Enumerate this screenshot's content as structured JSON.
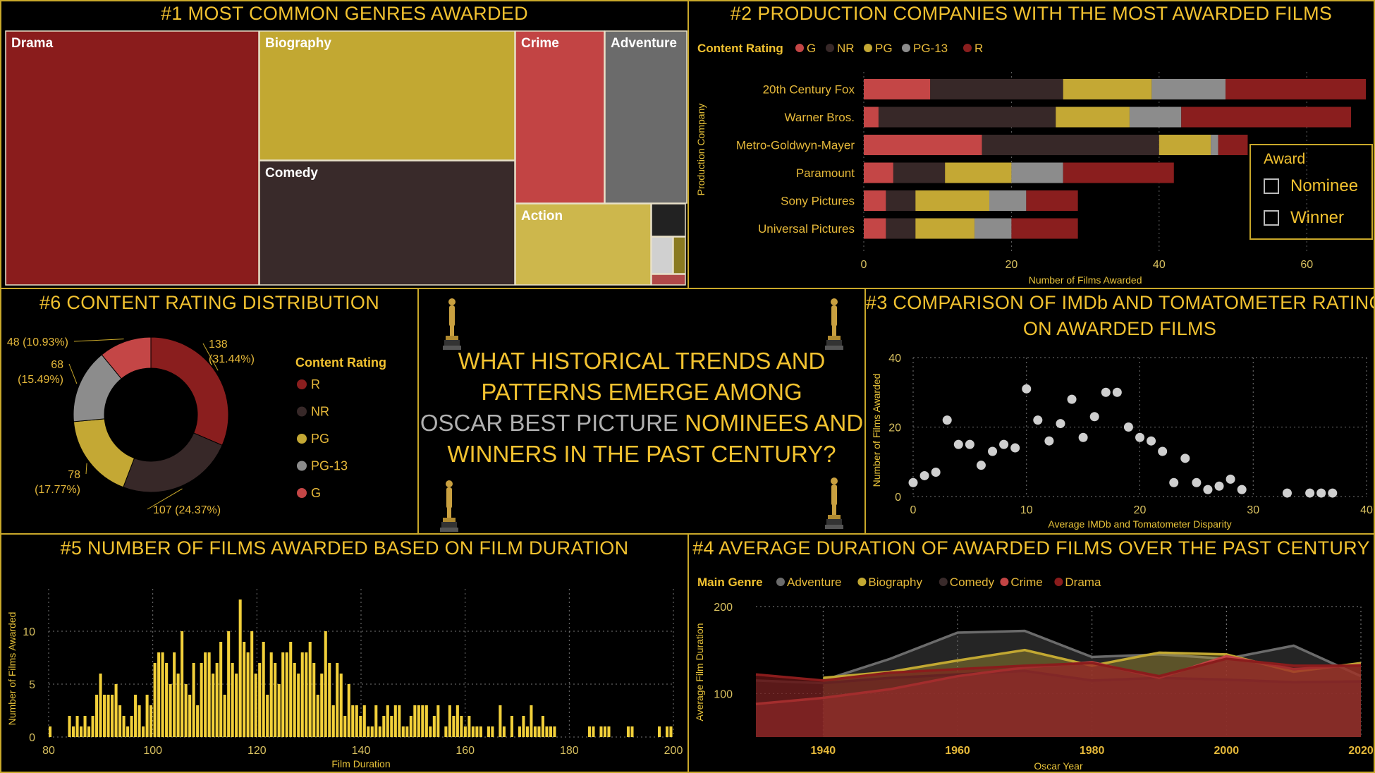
{
  "panels": {
    "p1_title": "#1 MOST COMMON GENRES AWARDED",
    "p2_title": "#2 PRODUCTION COMPANIES WITH THE MOST AWARDED FILMS",
    "p6_title": "#6 CONTENT RATING DISTRIBUTION",
    "p3_title_line1": "#3 COMPARISON OF IMDb AND TOMATOMETER RATINGS",
    "p3_title_line2": "ON AWARDED FILMS",
    "p5_title": "#5 NUMBER OF FILMS AWARDED BASED ON FILM DURATION",
    "p4_title": "#4 AVERAGE DURATION OF AWARDED FILMS OVER THE PAST CENTURY"
  },
  "center": {
    "line1": "WHAT HISTORICAL TRENDS AND",
    "line2": "PATTERNS EMERGE AMONG",
    "line3_grey": "OSCAR BEST PICTURE",
    "line3_rest": " NOMINEES AND",
    "line4": "WINNERS IN THE PAST CENTURY?"
  },
  "award_filter": {
    "title": "Award",
    "options": [
      "Nominee",
      "Winner"
    ]
  },
  "colors": {
    "G": "#c44646",
    "NR": "#372828",
    "PG": "#c4a834",
    "PG-13": "#8c8c8c",
    "R": "#8a1e1e",
    "Adventure": "#6b6b6b",
    "Biography": "#c2a832",
    "Comedy": "#392a2a",
    "Crime": "#c24444",
    "Drama": "#8a1c1c",
    "bar_yellow": "#f2d03a",
    "scatter": "#cfcfcf"
  },
  "chart_data": [
    {
      "id": "treemap",
      "type": "treemap",
      "title": "#1 MOST COMMON GENRES AWARDED",
      "tiles": [
        {
          "label": "Drama",
          "color": "#8a1c1c",
          "relative_size": 0.341
        },
        {
          "label": "Biography",
          "color": "#c2a832",
          "relative_size": 0.167
        },
        {
          "label": "Comedy",
          "color": "#392a2a",
          "relative_size": 0.167
        },
        {
          "label": "Crime",
          "color": "#c24444",
          "relative_size": 0.072
        },
        {
          "label": "Adventure",
          "color": "#6b6b6b",
          "relative_size": 0.072
        },
        {
          "label": "Action",
          "color": "#cdb74c",
          "relative_size": 0.051
        },
        {
          "label": "",
          "color": "#222222",
          "relative_size": 0.014
        },
        {
          "label": "",
          "color": "#d0d0d0",
          "relative_size": 0.008
        },
        {
          "label": "",
          "color": "#8a7a20",
          "relative_size": 0.004
        },
        {
          "label": "",
          "color": "#b04848",
          "relative_size": 0.004
        }
      ]
    },
    {
      "id": "stacked_bar",
      "type": "bar",
      "orientation": "horizontal",
      "stacked": true,
      "title": "#2 PRODUCTION COMPANIES WITH THE MOST AWARDED FILMS",
      "legend_title": "Content Rating",
      "ylabel": "Production Company",
      "xlabel": "Number of Films Awarded",
      "xlim": [
        0,
        68
      ],
      "xticks": [
        0,
        20,
        40,
        60
      ],
      "categories": [
        "20th Century Fox",
        "Warner Bros.",
        "Metro-Goldwyn-Mayer",
        "Paramount",
        "Sony Pictures",
        "Universal Pictures"
      ],
      "series": [
        {
          "name": "G",
          "values": [
            9,
            2,
            16,
            4,
            3,
            3
          ]
        },
        {
          "name": "NR",
          "values": [
            18,
            24,
            24,
            7,
            4,
            4
          ]
        },
        {
          "name": "PG",
          "values": [
            12,
            10,
            7,
            9,
            10,
            8
          ]
        },
        {
          "name": "PG-13",
          "values": [
            10,
            7,
            1,
            7,
            5,
            5
          ]
        },
        {
          "name": "R",
          "values": [
            19,
            23,
            4,
            15,
            7,
            9
          ]
        }
      ]
    },
    {
      "id": "donut",
      "type": "pie",
      "donut": true,
      "title": "#6 CONTENT RATING DISTRIBUTION",
      "legend_title": "Content Rating",
      "legend": [
        "R",
        "NR",
        "PG",
        "PG-13",
        "G"
      ],
      "slices": [
        {
          "name": "R",
          "value": 138,
          "label_line1": "138",
          "label_line2": "(31.44%)"
        },
        {
          "name": "NR",
          "value": 107,
          "label_line1": "107 (24.37%)",
          "label_line2": ""
        },
        {
          "name": "PG",
          "value": 78,
          "label_line1": "78",
          "label_line2": "(17.77%)"
        },
        {
          "name": "PG-13",
          "value": 68,
          "label_line1": "68",
          "label_line2": "(15.49%)"
        },
        {
          "name": "G",
          "value": 48,
          "label_line1": "48 (10.93%)",
          "label_line2": ""
        }
      ]
    },
    {
      "id": "scatter",
      "type": "scatter",
      "title": "#3 COMPARISON OF IMDb AND TOMATOMETER RATINGS ON AWARDED FILMS",
      "xlabel": "Average IMDb and Tomatometer Disparity",
      "ylabel": "Number of Films Awarded",
      "xlim": [
        0,
        40
      ],
      "ylim": [
        0,
        40
      ],
      "xticks": [
        0,
        10,
        20,
        30,
        40
      ],
      "yticks": [
        0,
        20,
        40
      ],
      "points": [
        [
          0,
          4
        ],
        [
          1,
          6
        ],
        [
          2,
          7
        ],
        [
          3,
          22
        ],
        [
          4,
          15
        ],
        [
          5,
          15
        ],
        [
          6,
          9
        ],
        [
          7,
          13
        ],
        [
          8,
          15
        ],
        [
          9,
          14
        ],
        [
          10,
          31
        ],
        [
          11,
          22
        ],
        [
          12,
          16
        ],
        [
          13,
          21
        ],
        [
          14,
          28
        ],
        [
          15,
          17
        ],
        [
          16,
          23
        ],
        [
          17,
          30
        ],
        [
          18,
          30
        ],
        [
          19,
          20
        ],
        [
          20,
          17
        ],
        [
          21,
          16
        ],
        [
          22,
          13
        ],
        [
          23,
          4
        ],
        [
          24,
          11
        ],
        [
          25,
          4
        ],
        [
          26,
          2
        ],
        [
          27,
          3
        ],
        [
          28,
          5
        ],
        [
          29,
          2
        ],
        [
          33,
          1
        ],
        [
          35,
          1
        ],
        [
          36,
          1
        ],
        [
          37,
          1
        ]
      ]
    },
    {
      "id": "histogram",
      "type": "bar",
      "title": "#5 NUMBER OF FILMS AWARDED BASED ON FILM DURATION",
      "xlabel": "Film Duration",
      "ylabel": "Number of Films Awarded",
      "xlim": [
        80,
        200
      ],
      "ylim": [
        0,
        14
      ],
      "xticks": [
        80,
        100,
        120,
        140,
        160,
        180,
        200
      ],
      "yticks": [
        0,
        5,
        10
      ],
      "x_start": 80,
      "values": [
        1,
        0,
        0,
        0,
        0,
        2,
        1,
        2,
        1,
        2,
        1,
        2,
        4,
        6,
        4,
        4,
        4,
        5,
        3,
        2,
        1,
        2,
        4,
        3,
        1,
        4,
        3,
        7,
        8,
        8,
        7,
        5,
        8,
        6,
        10,
        5,
        4,
        7,
        3,
        7,
        8,
        8,
        6,
        7,
        9,
        4,
        10,
        7,
        6,
        13,
        9,
        8,
        10,
        6,
        7,
        9,
        4,
        8,
        7,
        5,
        8,
        8,
        9,
        7,
        6,
        8,
        8,
        9,
        7,
        4,
        6,
        10,
        7,
        3,
        7,
        6,
        2,
        5,
        3,
        3,
        2,
        3,
        1,
        1,
        3,
        1,
        2,
        3,
        2,
        3,
        3,
        1,
        1,
        2,
        3,
        3,
        3,
        3,
        1,
        2,
        3,
        0,
        1,
        3,
        2,
        3,
        2,
        1,
        2,
        1,
        1,
        1,
        0,
        1,
        1,
        0,
        3,
        1,
        0,
        2,
        0,
        1,
        2,
        1,
        3,
        1,
        1,
        2,
        1,
        1,
        1,
        0,
        0,
        0,
        0,
        0,
        0,
        0,
        0,
        1,
        1,
        0,
        1,
        1,
        1,
        0,
        0,
        0,
        0,
        1,
        1,
        0,
        0,
        0,
        0,
        0,
        0,
        1,
        0,
        1,
        1
      ],
      "values_note_end": ""
    },
    {
      "id": "area",
      "type": "area",
      "title": "#4 AVERAGE DURATION OF AWARDED FILMS OVER THE PAST CENTURY",
      "legend_title": "Main Genre",
      "xlabel": "Oscar Year",
      "ylabel": "Average Film Duration",
      "xlim": [
        1930,
        2020
      ],
      "ylim": [
        50,
        200
      ],
      "xticks": [
        1940,
        1960,
        1980,
        2000,
        2020
      ],
      "yticks": [
        100,
        200
      ],
      "series": [
        {
          "name": "Adventure",
          "x": [
            1940,
            1950,
            1960,
            1970,
            1980,
            1990,
            2000,
            2010,
            2020
          ],
          "values": [
            115,
            140,
            170,
            172,
            142,
            145,
            140,
            155,
            120
          ]
        },
        {
          "name": "Biography",
          "x": [
            1940,
            1950,
            1960,
            1970,
            1980,
            1990,
            2000,
            2010,
            2020
          ],
          "values": [
            118,
            125,
            138,
            150,
            132,
            147,
            145,
            125,
            135
          ]
        },
        {
          "name": "Comedy",
          "x": [
            1930,
            1940,
            1950,
            1960,
            1970,
            1980,
            1990,
            2000,
            2010,
            2020
          ],
          "values": [
            115,
            112,
            118,
            122,
            126,
            115,
            118,
            116,
            113,
            114
          ]
        },
        {
          "name": "Crime",
          "x": [
            1930,
            1940,
            1950,
            1960,
            1970,
            1980,
            1990,
            2000,
            2010,
            2020
          ],
          "values": [
            88,
            95,
            105,
            120,
            130,
            136,
            118,
            143,
            128,
            133
          ]
        },
        {
          "name": "Drama",
          "x": [
            1930,
            1940,
            1950,
            1960,
            1970,
            1980,
            1990,
            2000,
            2010,
            2020
          ],
          "values": [
            122,
            115,
            124,
            128,
            132,
            135,
            120,
            140,
            132,
            132
          ]
        }
      ]
    }
  ]
}
